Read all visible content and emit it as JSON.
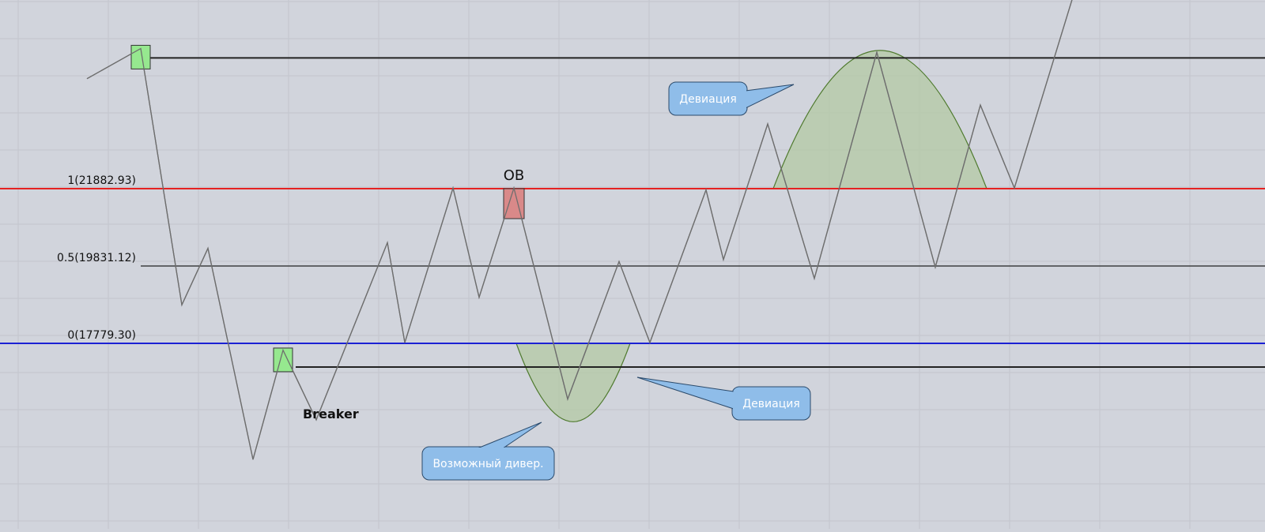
{
  "chart_data": {
    "type": "line",
    "fib_levels": [
      {
        "label": "1(21882.93)",
        "value": 21882.93,
        "color": "#e52222"
      },
      {
        "label": "0.5(19831.12)",
        "value": 19831.12,
        "color": "#222222"
      },
      {
        "label": "0(17779.30)",
        "value": 17779.3,
        "color": "#1b21d4"
      }
    ],
    "price_path": [
      [
        110,
        24800
      ],
      [
        178,
        25600
      ],
      [
        230,
        18800
      ],
      [
        263,
        20300
      ],
      [
        320,
        14700
      ],
      [
        358,
        17600
      ],
      [
        400,
        15750
      ],
      [
        490,
        20450
      ],
      [
        512,
        17800
      ],
      [
        573,
        21900
      ],
      [
        606,
        19000
      ],
      [
        650,
        21900
      ],
      [
        718,
        16300
      ],
      [
        783,
        19950
      ],
      [
        822,
        17800
      ],
      [
        893,
        21850
      ],
      [
        915,
        20000
      ],
      [
        971,
        23600
      ],
      [
        1030,
        19500
      ],
      [
        1109,
        25500
      ],
      [
        1183,
        19800
      ],
      [
        1240,
        24100
      ],
      [
        1283,
        21900
      ],
      [
        1375,
        28200
      ]
    ],
    "horizontal_lines": [
      {
        "name": "high-level",
        "value": 25350,
        "color": "#222222"
      },
      {
        "name": "breaker-level",
        "value": 17150,
        "color": "#222222"
      }
    ],
    "deviation_zones": [
      {
        "name": "upper-deviation-zone",
        "x_start": 978,
        "x_end": 1248,
        "base": 21882.93,
        "peak": 25550
      },
      {
        "name": "lower-deviation-zone",
        "x_start": 653,
        "x_end": 797,
        "base": 17779.3,
        "peak": 15700
      }
    ],
    "markers": [
      {
        "name": "swing-high-marker",
        "x": 178,
        "value": 25350,
        "color": "#96e88f"
      },
      {
        "name": "breaker-marker",
        "x": 358,
        "value": 17320,
        "color": "#96e88f"
      },
      {
        "name": "ob-marker",
        "x": 650,
        "value": 21500,
        "color": "#d98989"
      }
    ],
    "annotations": {
      "ob": "OB",
      "breaker": "Breaker",
      "callout_upper": "Девиация",
      "callout_lower": "Девиация",
      "callout_divergence": "Возможный дивер."
    },
    "callout_color": "#8fbde9",
    "zone_color": "#b3c9a4",
    "zone_stroke": "#4f7a2e"
  }
}
